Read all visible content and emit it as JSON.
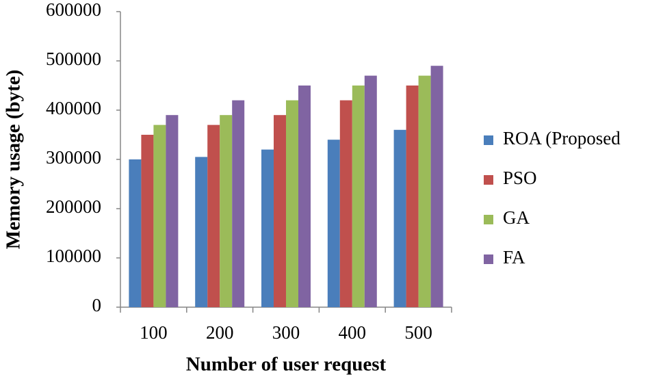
{
  "chart_data": {
    "type": "bar",
    "x_label": "Number of user request",
    "y_label": "Memory usage (byte)",
    "categories": [
      "100",
      "200",
      "300",
      "400",
      "500"
    ],
    "series": [
      {
        "name": "ROA (Proposed",
        "color": "#4a7ebb",
        "values": [
          300000,
          305000,
          320000,
          340000,
          360000
        ]
      },
      {
        "name": "PSO",
        "color": "#c0504d",
        "values": [
          350000,
          370000,
          390000,
          420000,
          450000
        ]
      },
      {
        "name": "GA",
        "color": "#9bbb59",
        "values": [
          370000,
          390000,
          420000,
          450000,
          470000
        ]
      },
      {
        "name": "FA",
        "color": "#8064a2",
        "values": [
          390000,
          420000,
          450000,
          470000,
          490000
        ]
      }
    ],
    "ylim": [
      0,
      600000
    ],
    "yticks": [
      0,
      100000,
      200000,
      300000,
      400000,
      500000,
      600000
    ],
    "grid": false,
    "legend": "right"
  }
}
